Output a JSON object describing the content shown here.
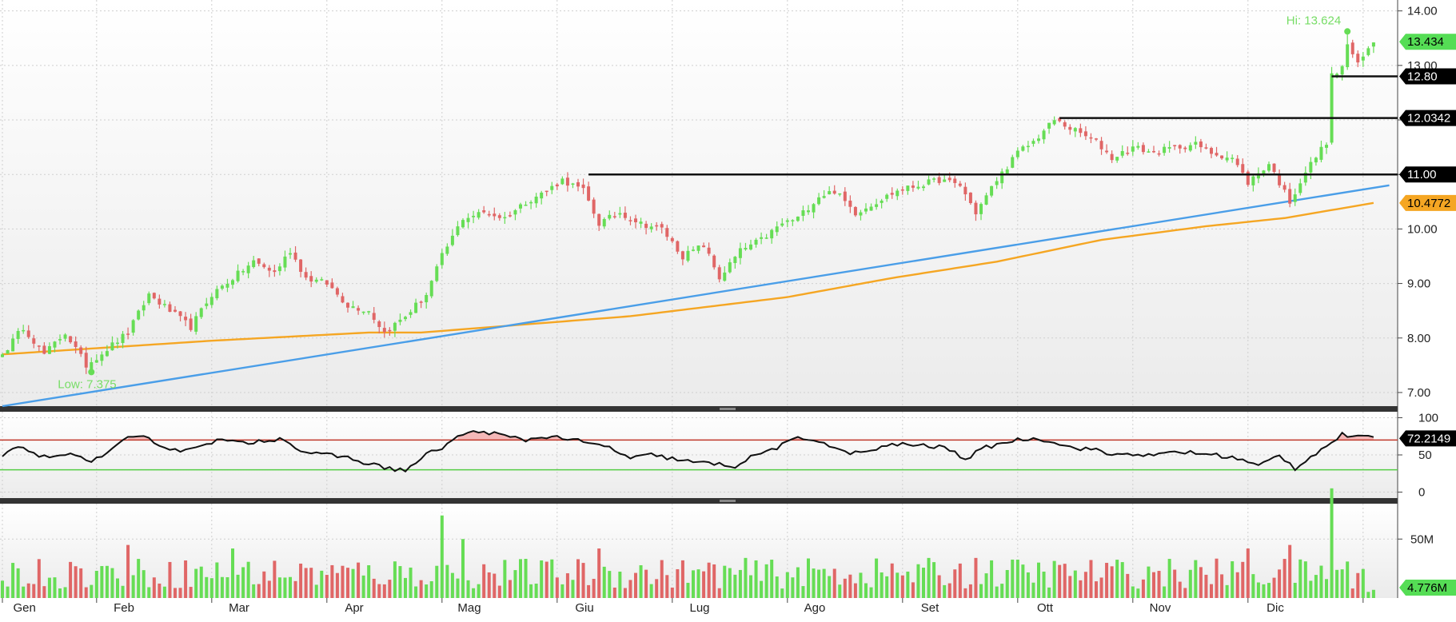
{
  "chart_data": [
    {
      "type": "candlestick",
      "panel": "price",
      "ylim": [
        6.75,
        14.2
      ],
      "yticks": [
        "14.00",
        "13.00",
        "12.00",
        "11.00",
        "10.00",
        "9.00",
        "8.00",
        "7.00"
      ],
      "months": [
        "Gen",
        "Feb",
        "Mar",
        "Apr",
        "Mag",
        "Giu",
        "Lug",
        "Ago",
        "Set",
        "Ott",
        "Nov",
        "Dic"
      ],
      "grid": true,
      "colors": {
        "up": "#66dd55",
        "down": "#e06666",
        "trendline": "#4a9ee8",
        "moving_average": "#f5a623",
        "levels": "#111111"
      },
      "close_anchors": [
        {
          "t": 0,
          "v": 7.7
        },
        {
          "t": 4,
          "v": 8.2
        },
        {
          "t": 8,
          "v": 7.7
        },
        {
          "t": 12,
          "v": 8.1
        },
        {
          "t": 16,
          "v": 7.5
        },
        {
          "t": 20,
          "v": 7.8
        },
        {
          "t": 24,
          "v": 8.1
        },
        {
          "t": 28,
          "v": 8.8
        },
        {
          "t": 32,
          "v": 8.5
        },
        {
          "t": 36,
          "v": 8.2
        },
        {
          "t": 40,
          "v": 8.8
        },
        {
          "t": 44,
          "v": 9.1
        },
        {
          "t": 48,
          "v": 9.4
        },
        {
          "t": 52,
          "v": 9.2
        },
        {
          "t": 55,
          "v": 9.6
        },
        {
          "t": 58,
          "v": 9.1
        },
        {
          "t": 62,
          "v": 9.0
        },
        {
          "t": 66,
          "v": 8.6
        },
        {
          "t": 70,
          "v": 8.5
        },
        {
          "t": 73,
          "v": 8.1
        },
        {
          "t": 77,
          "v": 8.4
        },
        {
          "t": 81,
          "v": 8.8
        },
        {
          "t": 84,
          "v": 9.5
        },
        {
          "t": 88,
          "v": 10.2
        },
        {
          "t": 92,
          "v": 10.3
        },
        {
          "t": 96,
          "v": 10.2
        },
        {
          "t": 100,
          "v": 10.5
        },
        {
          "t": 104,
          "v": 10.7
        },
        {
          "t": 107,
          "v": 10.9
        },
        {
          "t": 111,
          "v": 10.7
        },
        {
          "t": 114,
          "v": 10.1
        },
        {
          "t": 118,
          "v": 10.3
        },
        {
          "t": 122,
          "v": 10.1
        },
        {
          "t": 126,
          "v": 10.0
        },
        {
          "t": 130,
          "v": 9.5
        },
        {
          "t": 134,
          "v": 9.7
        },
        {
          "t": 137,
          "v": 9.1
        },
        {
          "t": 141,
          "v": 9.6
        },
        {
          "t": 145,
          "v": 9.8
        },
        {
          "t": 149,
          "v": 10.1
        },
        {
          "t": 152,
          "v": 10.2
        },
        {
          "t": 156,
          "v": 10.6
        },
        {
          "t": 159,
          "v": 10.7
        },
        {
          "t": 163,
          "v": 10.3
        },
        {
          "t": 167,
          "v": 10.5
        },
        {
          "t": 171,
          "v": 10.7
        },
        {
          "t": 175,
          "v": 10.8
        },
        {
          "t": 179,
          "v": 10.9
        },
        {
          "t": 183,
          "v": 10.8
        },
        {
          "t": 186,
          "v": 10.3
        },
        {
          "t": 190,
          "v": 10.9
        },
        {
          "t": 194,
          "v": 11.4
        },
        {
          "t": 197,
          "v": 11.6
        },
        {
          "t": 201,
          "v": 12.0
        },
        {
          "t": 205,
          "v": 11.8
        },
        {
          "t": 209,
          "v": 11.6
        },
        {
          "t": 212,
          "v": 11.3
        },
        {
          "t": 216,
          "v": 11.5
        },
        {
          "t": 220,
          "v": 11.4
        },
        {
          "t": 224,
          "v": 11.5
        },
        {
          "t": 228,
          "v": 11.55
        },
        {
          "t": 231,
          "v": 11.4
        },
        {
          "t": 235,
          "v": 11.3
        },
        {
          "t": 238,
          "v": 10.85
        },
        {
          "t": 242,
          "v": 11.2
        },
        {
          "t": 246,
          "v": 10.5
        },
        {
          "t": 249,
          "v": 11.05
        },
        {
          "t": 253,
          "v": 11.6
        },
        {
          "t": 254,
          "v": 12.8
        },
        {
          "t": 256,
          "v": 12.95
        },
        {
          "t": 257,
          "v": 13.4
        },
        {
          "t": 259,
          "v": 13.0
        },
        {
          "t": 261,
          "v": 13.3
        },
        {
          "t": 262,
          "v": 13.434
        }
      ],
      "ma_anchors": [
        {
          "t": 0,
          "v": 7.7
        },
        {
          "t": 40,
          "v": 7.95
        },
        {
          "t": 70,
          "v": 8.1
        },
        {
          "t": 80,
          "v": 8.1
        },
        {
          "t": 120,
          "v": 8.4
        },
        {
          "t": 150,
          "v": 8.75
        },
        {
          "t": 170,
          "v": 9.1
        },
        {
          "t": 190,
          "v": 9.4
        },
        {
          "t": 210,
          "v": 9.8
        },
        {
          "t": 230,
          "v": 10.05
        },
        {
          "t": 245,
          "v": 10.2
        },
        {
          "t": 262,
          "v": 10.4772
        }
      ],
      "trendline": {
        "t1": 0,
        "v1": 6.75,
        "t2": 265,
        "v2": 10.8
      },
      "levels": [
        {
          "value": 11.0,
          "from_t": 112,
          "label": "11.00"
        },
        {
          "value": 12.0342,
          "from_t": 202,
          "label": "12.0342"
        },
        {
          "value": 12.8,
          "from_t": 254,
          "label": "12.80"
        }
      ],
      "annotations": {
        "hi": {
          "text": "Hi: 13.624",
          "t": 257,
          "value": 13.624
        },
        "low": {
          "text": "Low: 7.375",
          "t": 17,
          "value": 7.375
        }
      },
      "last_price": {
        "label": "13.434",
        "value": 13.434
      },
      "ma_last": {
        "label": "10.4772",
        "value": 10.4772
      }
    },
    {
      "type": "line",
      "panel": "rsi",
      "ylim": [
        -8,
        108
      ],
      "yticks": [
        "100",
        "50",
        "0"
      ],
      "overbought": 70,
      "oversold": 30,
      "last_label": "72.2149",
      "last_value": 72.2149,
      "colors": {
        "line": "#111111",
        "overbought": "#c0392b",
        "oversold": "#55cc44",
        "fill": "#f4b8b8"
      },
      "anchors": [
        {
          "t": 0,
          "v": 48
        },
        {
          "t": 3,
          "v": 60
        },
        {
          "t": 6,
          "v": 52
        },
        {
          "t": 9,
          "v": 45
        },
        {
          "t": 13,
          "v": 55
        },
        {
          "t": 16,
          "v": 40
        },
        {
          "t": 20,
          "v": 52
        },
        {
          "t": 24,
          "v": 72
        },
        {
          "t": 28,
          "v": 73
        },
        {
          "t": 31,
          "v": 60
        },
        {
          "t": 35,
          "v": 55
        },
        {
          "t": 38,
          "v": 65
        },
        {
          "t": 42,
          "v": 70
        },
        {
          "t": 46,
          "v": 65
        },
        {
          "t": 50,
          "v": 70
        },
        {
          "t": 54,
          "v": 72
        },
        {
          "t": 57,
          "v": 55
        },
        {
          "t": 61,
          "v": 50
        },
        {
          "t": 65,
          "v": 48
        },
        {
          "t": 69,
          "v": 40
        },
        {
          "t": 73,
          "v": 33
        },
        {
          "t": 77,
          "v": 29
        },
        {
          "t": 81,
          "v": 50
        },
        {
          "t": 84,
          "v": 60
        },
        {
          "t": 88,
          "v": 78
        },
        {
          "t": 92,
          "v": 82
        },
        {
          "t": 96,
          "v": 75
        },
        {
          "t": 100,
          "v": 70
        },
        {
          "t": 104,
          "v": 75
        },
        {
          "t": 108,
          "v": 72
        },
        {
          "t": 112,
          "v": 65
        },
        {
          "t": 116,
          "v": 60
        },
        {
          "t": 120,
          "v": 45
        },
        {
          "t": 124,
          "v": 50
        },
        {
          "t": 128,
          "v": 45
        },
        {
          "t": 132,
          "v": 40
        },
        {
          "t": 136,
          "v": 38
        },
        {
          "t": 140,
          "v": 35
        },
        {
          "t": 144,
          "v": 50
        },
        {
          "t": 148,
          "v": 60
        },
        {
          "t": 152,
          "v": 72
        },
        {
          "t": 156,
          "v": 70
        },
        {
          "t": 160,
          "v": 55
        },
        {
          "t": 164,
          "v": 52
        },
        {
          "t": 168,
          "v": 60
        },
        {
          "t": 172,
          "v": 65
        },
        {
          "t": 176,
          "v": 62
        },
        {
          "t": 180,
          "v": 60
        },
        {
          "t": 184,
          "v": 45
        },
        {
          "t": 188,
          "v": 60
        },
        {
          "t": 192,
          "v": 68
        },
        {
          "t": 196,
          "v": 72
        },
        {
          "t": 200,
          "v": 70
        },
        {
          "t": 204,
          "v": 60
        },
        {
          "t": 208,
          "v": 58
        },
        {
          "t": 212,
          "v": 50
        },
        {
          "t": 216,
          "v": 52
        },
        {
          "t": 220,
          "v": 48
        },
        {
          "t": 224,
          "v": 55
        },
        {
          "t": 228,
          "v": 52
        },
        {
          "t": 232,
          "v": 50
        },
        {
          "t": 236,
          "v": 45
        },
        {
          "t": 240,
          "v": 35
        },
        {
          "t": 244,
          "v": 50
        },
        {
          "t": 247,
          "v": 32
        },
        {
          "t": 250,
          "v": 48
        },
        {
          "t": 253,
          "v": 62
        },
        {
          "t": 256,
          "v": 77
        },
        {
          "t": 259,
          "v": 74
        },
        {
          "t": 262,
          "v": 72.2149
        }
      ]
    },
    {
      "type": "bar",
      "panel": "volume",
      "ylim": [
        0,
        80
      ],
      "yticks": [
        "50M"
      ],
      "last_label": "4.776M",
      "last_value": 4.776,
      "colors": {
        "up": "#66dd55",
        "down": "#e06666"
      }
    }
  ],
  "ui": {
    "tag_colors": {
      "last": "#55dd55",
      "level": "#000000",
      "ma": "#f5a623",
      "rsi": "#000000",
      "volume": "#55dd55"
    }
  }
}
